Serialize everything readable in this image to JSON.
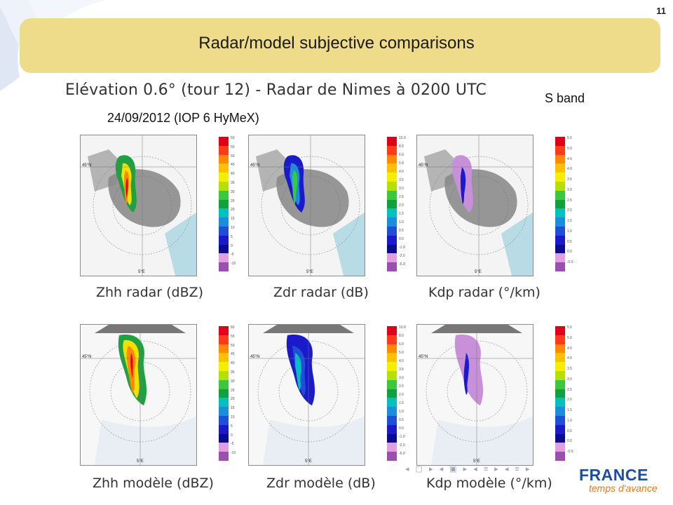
{
  "slide": {
    "number": "11",
    "title": "Radar/model subjective comparisons",
    "heading": "Elévation 0.6° (tour 12) - Radar de Nimes à 0200 UTC",
    "date_line": "24/09/2012 (IOP 6 HyMeX)",
    "band_label": "S band"
  },
  "panels": {
    "zhh_radar": {
      "caption": "Zhh radar (dBZ)",
      "lat_label": "45°N",
      "lon_label": "5°E",
      "unit": "dBZ"
    },
    "zdr_radar": {
      "caption": "Zdr radar (dB)",
      "lat_label": "45°N",
      "lon_label": "5°E",
      "unit": "dB"
    },
    "kdp_radar": {
      "caption": "Kdp radar (°/km)",
      "lat_label": "45°N",
      "lon_label": "5°E",
      "unit": "deg/km"
    },
    "zhh_model": {
      "caption": "Zhh modèle (dBZ)",
      "lat_label": "45°N",
      "lon_label": "5°E",
      "unit": "dBZ"
    },
    "zdr_model": {
      "caption": "Zdr modèle (dB)",
      "lat_label": "45°N",
      "lon_label": "5°E",
      "unit": "dB"
    },
    "kdp_model": {
      "caption": "Kdp modèle (°/km)",
      "lat_label": "45°N",
      "lon_label": "5°E",
      "unit": "deg/km"
    }
  },
  "scales": {
    "zhh": [
      "60",
      "55",
      "50",
      "45",
      "40",
      "35",
      "30",
      "25",
      "20",
      "15",
      "10",
      "5",
      "0",
      "-5",
      "-10"
    ],
    "zdr": [
      "10.0",
      "8.0",
      "6.0",
      "5.0",
      "4.0",
      "3.5",
      "3.0",
      "2.5",
      "2.0",
      "1.5",
      "1.0",
      "0.5",
      "0.0",
      "-1.0",
      "-2.0",
      "-5.0"
    ],
    "kdp": [
      "5.5",
      "5.0",
      "4.5",
      "4.0",
      "3.5",
      "3.0",
      "2.5",
      "2.0",
      "1.5",
      "1.0",
      "0.5",
      "0.0",
      "-0.5"
    ]
  },
  "scale_colors": [
    "#e0001a",
    "#ff3b1a",
    "#ff8a00",
    "#ffc000",
    "#f2f000",
    "#b5e000",
    "#3cc83c",
    "#11a040",
    "#00c0c0",
    "#1b8ddc",
    "#1f4fd8",
    "#1a1acb",
    "#0b0b8f",
    "#e0a0e0",
    "#9b50b0"
  ],
  "footer": {
    "logo_main": "FRANCE",
    "logo_sub": "temps d'avance"
  }
}
